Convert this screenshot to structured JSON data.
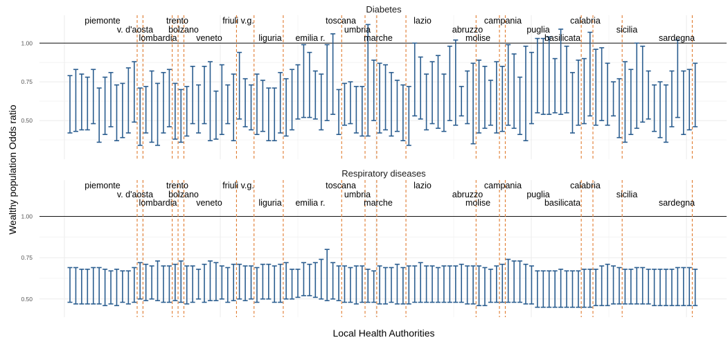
{
  "figure": {
    "y_axis_label": "Wealthy population Odds ratio",
    "x_axis_label": "Local Health Authorities"
  },
  "chart_data": [
    {
      "type": "errorbar",
      "title": "Diabetes",
      "ylim": [
        0.25,
        1.18
      ],
      "y_ticks": [
        0.5,
        0.75,
        1.0
      ],
      "y_tick_labels": [
        "0.50",
        "0.75",
        "1.00"
      ],
      "reference_line": 1.0,
      "grid": true,
      "regions": [
        {
          "name": "piemonte",
          "end_index": 11
        },
        {
          "name": "v. d'aosta",
          "end_index": 12
        },
        {
          "name": "lombardia",
          "end_index": 17
        },
        {
          "name": "trento",
          "end_index": 18
        },
        {
          "name": "bolzano",
          "end_index": 19
        },
        {
          "name": "veneto",
          "end_index": 28
        },
        {
          "name": "friuli v.g.",
          "end_index": 31
        },
        {
          "name": "liguria",
          "end_index": 36
        },
        {
          "name": "emilia r.",
          "end_index": 46
        },
        {
          "name": "toscana",
          "end_index": 50
        },
        {
          "name": "umbria",
          "end_index": 52
        },
        {
          "name": "marche",
          "end_index": 57
        },
        {
          "name": "lazio",
          "end_index": 69
        },
        {
          "name": "abruzzo",
          "end_index": 73
        },
        {
          "name": "molise",
          "end_index": 74
        },
        {
          "name": "campania",
          "end_index": 87
        },
        {
          "name": "puglia",
          "end_index": 89
        },
        {
          "name": "basilicata",
          "end_index": 94
        },
        {
          "name": "calabria",
          "end_index": 106
        },
        {
          "name": "sicilia",
          "end_index": null
        },
        {
          "name": "sardegna",
          "end_index": null
        }
      ],
      "lower": [
        0.42,
        0.43,
        0.44,
        0.44,
        0.48,
        0.36,
        0.41,
        0.46,
        0.37,
        0.39,
        0.42,
        0.49,
        0.34,
        0.42,
        0.36,
        0.34,
        0.42,
        0.46,
        0.38,
        0.36,
        0.4,
        0.48,
        0.42,
        0.48,
        0.37,
        0.38,
        0.41,
        0.48,
        0.37,
        0.51,
        0.46,
        0.44,
        0.41,
        0.43,
        0.37,
        0.37,
        0.42,
        0.4,
        0.44,
        0.51,
        0.52,
        0.52,
        0.51,
        0.44,
        0.5,
        0.54,
        0.41,
        0.47,
        0.48,
        0.42,
        0.4,
        0.4,
        0.5,
        0.42,
        0.44,
        0.4,
        0.43,
        0.37,
        0.34,
        0.53,
        0.51,
        0.44,
        0.48,
        0.45,
        0.43,
        0.5,
        0.47,
        0.53,
        0.48,
        0.35,
        0.42,
        0.45,
        0.47,
        0.42,
        0.43,
        0.47,
        0.45,
        0.41,
        0.37,
        0.48,
        0.55,
        0.54,
        0.54,
        0.55,
        0.54,
        0.55,
        0.42,
        0.47,
        0.48,
        0.53,
        0.47,
        0.5,
        0.47,
        0.53,
        0.39,
        0.36,
        0.41,
        0.45,
        0.49,
        0.51,
        0.43,
        0.39,
        0.36,
        0.46,
        0.52,
        0.41,
        0.44,
        0.46
      ],
      "upper": [
        0.79,
        0.83,
        0.8,
        0.78,
        0.83,
        0.71,
        0.78,
        0.81,
        0.73,
        0.74,
        0.84,
        0.88,
        0.71,
        0.72,
        0.82,
        0.74,
        0.81,
        0.83,
        0.74,
        0.7,
        0.72,
        0.85,
        0.73,
        0.85,
        0.88,
        0.69,
        0.86,
        0.73,
        0.8,
        0.94,
        0.77,
        0.73,
        0.8,
        0.76,
        0.71,
        0.71,
        0.81,
        0.77,
        0.83,
        0.86,
        0.99,
        0.94,
        0.82,
        0.8,
        0.99,
        1.06,
        0.7,
        0.74,
        0.75,
        0.72,
        0.72,
        1.12,
        0.89,
        0.87,
        0.86,
        0.81,
        0.76,
        0.73,
        0.72,
        1.0,
        0.91,
        0.8,
        0.88,
        0.92,
        0.8,
        0.98,
        1.02,
        0.72,
        0.82,
        0.87,
        0.89,
        0.85,
        0.76,
        0.88,
        0.85,
        0.99,
        0.93,
        0.78,
        0.98,
        0.94,
        1.03,
        1.03,
        1.04,
        0.9,
        1.09,
        0.98,
        0.81,
        0.89,
        0.9,
        1.07,
        0.96,
        0.97,
        0.87,
        0.75,
        0.77,
        0.88,
        0.83,
        1.0,
        0.98,
        0.82,
        0.73,
        0.75,
        0.73,
        0.82,
        1.02,
        0.82,
        0.83,
        0.87
      ]
    },
    {
      "type": "errorbar",
      "title": "Respiratory diseases",
      "ylim": [
        0.39,
        1.22
      ],
      "y_ticks": [
        0.5,
        0.75,
        1.0
      ],
      "y_tick_labels": [
        "0.50",
        "0.75",
        "1.00"
      ],
      "reference_line": 1.0,
      "grid": true,
      "regions_same_as": 0,
      "lower": [
        0.48,
        0.47,
        0.47,
        0.47,
        0.47,
        0.47,
        0.46,
        0.47,
        0.46,
        0.48,
        0.47,
        0.48,
        0.5,
        0.49,
        0.5,
        0.49,
        0.48,
        0.48,
        0.49,
        0.48,
        0.47,
        0.48,
        0.5,
        0.48,
        0.49,
        0.49,
        0.5,
        0.48,
        0.49,
        0.5,
        0.49,
        0.5,
        0.48,
        0.5,
        0.5,
        0.48,
        0.48,
        0.5,
        0.5,
        0.51,
        0.52,
        0.52,
        0.51,
        0.5,
        0.49,
        0.5,
        0.49,
        0.48,
        0.48,
        0.47,
        0.48,
        0.48,
        0.48,
        0.47,
        0.47,
        0.48,
        0.47,
        0.47,
        0.47,
        0.48,
        0.48,
        0.48,
        0.48,
        0.48,
        0.48,
        0.48,
        0.48,
        0.48,
        0.47,
        0.47,
        0.46,
        0.46,
        0.48,
        0.48,
        0.48,
        0.48,
        0.48,
        0.48,
        0.47,
        0.47,
        0.45,
        0.45,
        0.45,
        0.45,
        0.45,
        0.45,
        0.45,
        0.45,
        0.45,
        0.45,
        0.46,
        0.46,
        0.46,
        0.47,
        0.47,
        0.47,
        0.47,
        0.47,
        0.47,
        0.47,
        0.46,
        0.46,
        0.46,
        0.46,
        0.46,
        0.46,
        0.46,
        0.46
      ],
      "upper": [
        0.69,
        0.69,
        0.68,
        0.68,
        0.69,
        0.69,
        0.68,
        0.67,
        0.68,
        0.67,
        0.67,
        0.69,
        0.72,
        0.71,
        0.7,
        0.73,
        0.7,
        0.7,
        0.71,
        0.73,
        0.7,
        0.7,
        0.68,
        0.71,
        0.73,
        0.72,
        0.7,
        0.69,
        0.71,
        0.71,
        0.7,
        0.7,
        0.69,
        0.71,
        0.71,
        0.7,
        0.71,
        0.72,
        0.68,
        0.68,
        0.72,
        0.71,
        0.72,
        0.74,
        0.8,
        0.72,
        0.7,
        0.7,
        0.69,
        0.7,
        0.7,
        0.68,
        0.67,
        0.7,
        0.69,
        0.69,
        0.71,
        0.69,
        0.7,
        0.7,
        0.72,
        0.7,
        0.7,
        0.69,
        0.7,
        0.7,
        0.7,
        0.71,
        0.7,
        0.7,
        0.7,
        0.69,
        0.68,
        0.7,
        0.71,
        0.74,
        0.73,
        0.73,
        0.71,
        0.7,
        0.67,
        0.67,
        0.67,
        0.67,
        0.68,
        0.67,
        0.67,
        0.67,
        0.68,
        0.68,
        0.68,
        0.7,
        0.71,
        0.7,
        0.69,
        0.68,
        0.68,
        0.69,
        0.69,
        0.68,
        0.68,
        0.68,
        0.68,
        0.68,
        0.69,
        0.69,
        0.69,
        0.68
      ]
    }
  ]
}
